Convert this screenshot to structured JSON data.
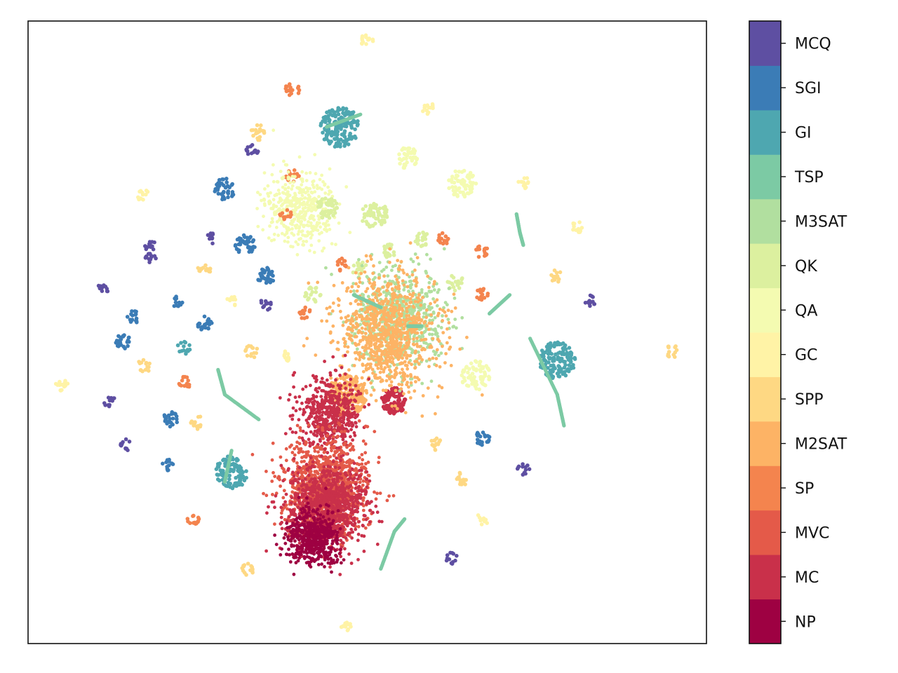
{
  "chart_data": {
    "type": "scatter",
    "title": "",
    "xlabel": "",
    "ylabel": "",
    "axes_ticks_visible": false,
    "grid": false,
    "colorbar": {
      "placement": "right",
      "categories": [
        "NP",
        "MC",
        "MVC",
        "SP",
        "M2SAT",
        "SPP",
        "GC",
        "QA",
        "QK",
        "M3SAT",
        "TSP",
        "GI",
        "SGI",
        "MCQ"
      ],
      "colors": [
        "#9e0142",
        "#c9304a",
        "#e45a49",
        "#f4844e",
        "#fdb365",
        "#fed883",
        "#fff3a6",
        "#f4fbb1",
        "#dcf09f",
        "#b1df9f",
        "#7ccaa4",
        "#4ea7b0",
        "#3b7cb6",
        "#5e4fa2"
      ]
    },
    "clusters": [
      {
        "category": "GC",
        "x": 0.5,
        "y": 0.97,
        "r": 0.01,
        "n": 14
      },
      {
        "category": "SP",
        "x": 0.39,
        "y": 0.89,
        "r": 0.011,
        "n": 16
      },
      {
        "category": "GI",
        "x": 0.46,
        "y": 0.83,
        "r": 0.03,
        "n": 160
      },
      {
        "category": "GC",
        "x": 0.59,
        "y": 0.86,
        "r": 0.01,
        "n": 14
      },
      {
        "category": "SPP",
        "x": 0.34,
        "y": 0.82,
        "r": 0.012,
        "n": 18
      },
      {
        "category": "MCQ",
        "x": 0.33,
        "y": 0.79,
        "r": 0.01,
        "n": 14
      },
      {
        "category": "QA",
        "x": 0.56,
        "y": 0.78,
        "r": 0.016,
        "n": 40
      },
      {
        "category": "SP",
        "x": 0.39,
        "y": 0.75,
        "r": 0.01,
        "n": 14
      },
      {
        "category": "SGI",
        "x": 0.29,
        "y": 0.73,
        "r": 0.016,
        "n": 40
      },
      {
        "category": "GC",
        "x": 0.17,
        "y": 0.72,
        "r": 0.009,
        "n": 12
      },
      {
        "category": "QA",
        "x": 0.4,
        "y": 0.7,
        "r": 0.045,
        "n": 420
      },
      {
        "category": "QK",
        "x": 0.44,
        "y": 0.7,
        "r": 0.016,
        "n": 50
      },
      {
        "category": "SP",
        "x": 0.38,
        "y": 0.69,
        "r": 0.009,
        "n": 12
      },
      {
        "category": "QA",
        "x": 0.64,
        "y": 0.74,
        "r": 0.021,
        "n": 60
      },
      {
        "category": "QK",
        "x": 0.51,
        "y": 0.69,
        "r": 0.02,
        "n": 70
      },
      {
        "category": "GC",
        "x": 0.73,
        "y": 0.74,
        "r": 0.009,
        "n": 12
      },
      {
        "category": "GC",
        "x": 0.81,
        "y": 0.67,
        "r": 0.009,
        "n": 12
      },
      {
        "category": "MCQ",
        "x": 0.18,
        "y": 0.64,
        "r": 0.009,
        "n": 12
      },
      {
        "category": "MCQ",
        "x": 0.27,
        "y": 0.65,
        "r": 0.009,
        "n": 12
      },
      {
        "category": "SGI",
        "x": 0.32,
        "y": 0.64,
        "r": 0.015,
        "n": 40
      },
      {
        "category": "QK",
        "x": 0.58,
        "y": 0.65,
        "r": 0.011,
        "n": 20
      },
      {
        "category": "SP",
        "x": 0.61,
        "y": 0.65,
        "r": 0.01,
        "n": 14
      },
      {
        "category": "SP",
        "x": 0.67,
        "y": 0.63,
        "r": 0.01,
        "n": 14
      },
      {
        "category": "QK",
        "x": 0.53,
        "y": 0.63,
        "r": 0.012,
        "n": 20
      },
      {
        "category": "MCQ",
        "x": 0.18,
        "y": 0.62,
        "r": 0.009,
        "n": 12
      },
      {
        "category": "SPP",
        "x": 0.26,
        "y": 0.6,
        "r": 0.01,
        "n": 14
      },
      {
        "category": "SP",
        "x": 0.46,
        "y": 0.61,
        "r": 0.01,
        "n": 14
      },
      {
        "category": "QK",
        "x": 0.49,
        "y": 0.6,
        "r": 0.012,
        "n": 20
      },
      {
        "category": "SGI",
        "x": 0.35,
        "y": 0.59,
        "r": 0.013,
        "n": 34
      },
      {
        "category": "SPP",
        "x": 0.78,
        "y": 0.59,
        "r": 0.01,
        "n": 14
      },
      {
        "category": "QK",
        "x": 0.63,
        "y": 0.58,
        "r": 0.012,
        "n": 20
      },
      {
        "category": "MCQ",
        "x": 0.11,
        "y": 0.57,
        "r": 0.009,
        "n": 12
      },
      {
        "category": "QK",
        "x": 0.42,
        "y": 0.56,
        "r": 0.012,
        "n": 20
      },
      {
        "category": "SP",
        "x": 0.67,
        "y": 0.56,
        "r": 0.01,
        "n": 14
      },
      {
        "category": "SGI",
        "x": 0.22,
        "y": 0.55,
        "r": 0.009,
        "n": 12
      },
      {
        "category": "GC",
        "x": 0.3,
        "y": 0.55,
        "r": 0.008,
        "n": 10
      },
      {
        "category": "MCQ",
        "x": 0.35,
        "y": 0.545,
        "r": 0.009,
        "n": 12
      },
      {
        "category": "MCQ",
        "x": 0.83,
        "y": 0.55,
        "r": 0.009,
        "n": 12
      },
      {
        "category": "SP",
        "x": 0.41,
        "y": 0.53,
        "r": 0.01,
        "n": 14
      },
      {
        "category": "SGI",
        "x": 0.155,
        "y": 0.525,
        "r": 0.01,
        "n": 16
      },
      {
        "category": "SGI",
        "x": 0.26,
        "y": 0.515,
        "r": 0.011,
        "n": 24
      },
      {
        "category": "SGI",
        "x": 0.14,
        "y": 0.485,
        "r": 0.011,
        "n": 24
      },
      {
        "category": "GI",
        "x": 0.23,
        "y": 0.475,
        "r": 0.01,
        "n": 14
      },
      {
        "category": "SPP",
        "x": 0.33,
        "y": 0.47,
        "r": 0.01,
        "n": 14
      },
      {
        "category": "GC",
        "x": 0.38,
        "y": 0.46,
        "r": 0.009,
        "n": 12
      },
      {
        "category": "GI",
        "x": 0.78,
        "y": 0.455,
        "r": 0.027,
        "n": 130
      },
      {
        "category": "SPP",
        "x": 0.95,
        "y": 0.47,
        "r": 0.01,
        "n": 14
      },
      {
        "category": "SPP",
        "x": 0.17,
        "y": 0.445,
        "r": 0.01,
        "n": 14
      },
      {
        "category": "QA",
        "x": 0.66,
        "y": 0.43,
        "r": 0.022,
        "n": 70
      },
      {
        "category": "GC",
        "x": 0.05,
        "y": 0.415,
        "r": 0.01,
        "n": 14
      },
      {
        "category": "SP",
        "x": 0.23,
        "y": 0.42,
        "r": 0.01,
        "n": 14
      },
      {
        "category": "MCQ",
        "x": 0.12,
        "y": 0.39,
        "r": 0.009,
        "n": 12
      },
      {
        "category": "MC",
        "x": 0.54,
        "y": 0.39,
        "r": 0.019,
        "n": 90
      },
      {
        "category": "SGI",
        "x": 0.21,
        "y": 0.36,
        "r": 0.011,
        "n": 24
      },
      {
        "category": "SPP",
        "x": 0.25,
        "y": 0.355,
        "r": 0.01,
        "n": 14
      },
      {
        "category": "SPP",
        "x": 0.6,
        "y": 0.32,
        "r": 0.01,
        "n": 14
      },
      {
        "category": "SGI",
        "x": 0.67,
        "y": 0.33,
        "r": 0.011,
        "n": 24
      },
      {
        "category": "MCQ",
        "x": 0.145,
        "y": 0.32,
        "r": 0.009,
        "n": 12
      },
      {
        "category": "GI",
        "x": 0.3,
        "y": 0.275,
        "r": 0.024,
        "n": 110
      },
      {
        "category": "MCQ",
        "x": 0.73,
        "y": 0.28,
        "r": 0.009,
        "n": 12
      },
      {
        "category": "SPP",
        "x": 0.64,
        "y": 0.265,
        "r": 0.01,
        "n": 14
      },
      {
        "category": "SGI",
        "x": 0.205,
        "y": 0.288,
        "r": 0.009,
        "n": 12
      },
      {
        "category": "SP",
        "x": 0.245,
        "y": 0.2,
        "r": 0.01,
        "n": 14
      },
      {
        "category": "GC",
        "x": 0.67,
        "y": 0.2,
        "r": 0.009,
        "n": 12
      },
      {
        "category": "MCQ",
        "x": 0.625,
        "y": 0.137,
        "r": 0.009,
        "n": 12
      },
      {
        "category": "SPP",
        "x": 0.325,
        "y": 0.12,
        "r": 0.01,
        "n": 14
      },
      {
        "category": "GC",
        "x": 0.47,
        "y": 0.03,
        "r": 0.009,
        "n": 12
      },
      {
        "category": "M3SAT",
        "x": 0.545,
        "y": 0.52,
        "r": 0.06,
        "n": 700
      },
      {
        "category": "M2SAT",
        "x": 0.53,
        "y": 0.5,
        "r": 0.07,
        "n": 900
      },
      {
        "category": "M2SAT",
        "x": 0.47,
        "y": 0.4,
        "r": 0.03,
        "n": 200
      },
      {
        "category": "MC",
        "x": 0.445,
        "y": 0.37,
        "r": 0.04,
        "n": 500
      },
      {
        "category": "MVC",
        "x": 0.44,
        "y": 0.25,
        "r": 0.055,
        "n": 1100
      },
      {
        "category": "MC",
        "x": 0.44,
        "y": 0.22,
        "r": 0.05,
        "n": 900
      },
      {
        "category": "NP",
        "x": 0.42,
        "y": 0.17,
        "r": 0.035,
        "n": 500
      }
    ],
    "curves": [
      {
        "category": "TSP",
        "points": [
          [
            0.44,
            0.83
          ],
          [
            0.49,
            0.85
          ]
        ]
      },
      {
        "category": "TSP",
        "points": [
          [
            0.72,
            0.69
          ],
          [
            0.725,
            0.66
          ],
          [
            0.73,
            0.64
          ]
        ]
      },
      {
        "category": "TSP",
        "points": [
          [
            0.48,
            0.56
          ],
          [
            0.52,
            0.54
          ]
        ]
      },
      {
        "category": "TSP",
        "points": [
          [
            0.56,
            0.51
          ],
          [
            0.58,
            0.51
          ]
        ]
      },
      {
        "category": "TSP",
        "points": [
          [
            0.68,
            0.53
          ],
          [
            0.71,
            0.56
          ]
        ]
      },
      {
        "category": "TSP",
        "points": [
          [
            0.28,
            0.44
          ],
          [
            0.29,
            0.4
          ],
          [
            0.34,
            0.36
          ]
        ]
      },
      {
        "category": "TSP",
        "points": [
          [
            0.74,
            0.49
          ],
          [
            0.78,
            0.4
          ],
          [
            0.79,
            0.35
          ]
        ]
      },
      {
        "category": "TSP",
        "points": [
          [
            0.3,
            0.31
          ],
          [
            0.29,
            0.26
          ]
        ]
      },
      {
        "category": "TSP",
        "points": [
          [
            0.52,
            0.12
          ],
          [
            0.54,
            0.18
          ],
          [
            0.555,
            0.2
          ]
        ]
      }
    ]
  }
}
